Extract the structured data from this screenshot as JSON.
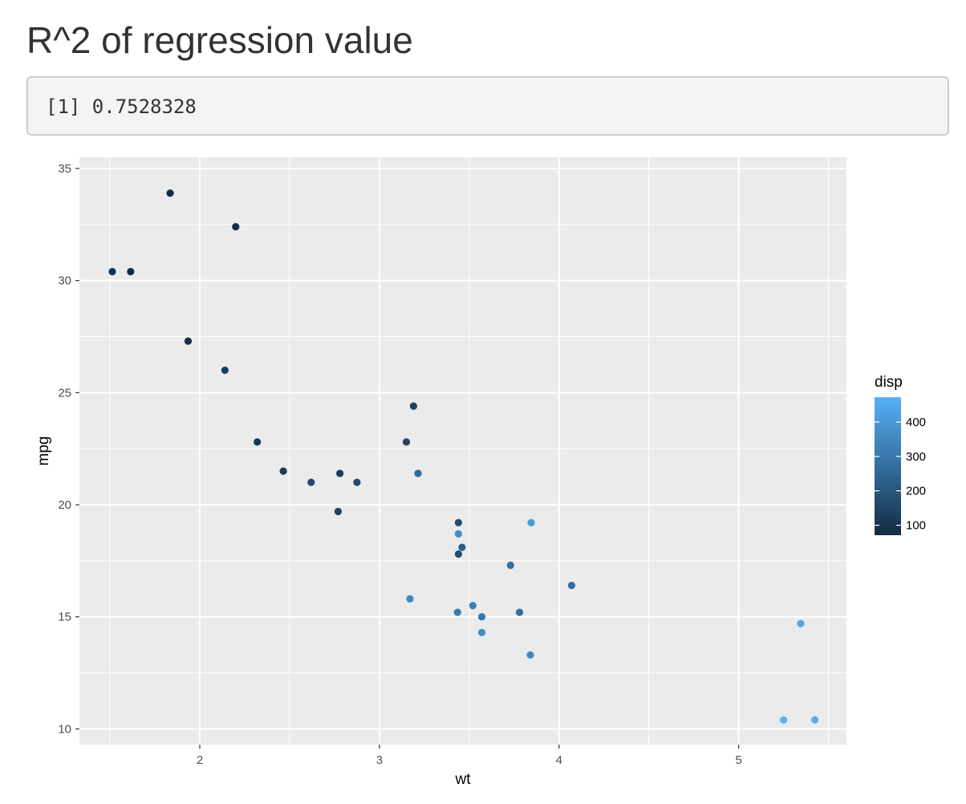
{
  "page": {
    "title": "R^2 of regression value",
    "output_text": "[1] 0.7528328"
  },
  "chart_data": {
    "type": "scatter",
    "title": "",
    "xlabel": "wt",
    "ylabel": "mpg",
    "xlim": [
      1.33,
      5.6
    ],
    "ylim": [
      9.3,
      35.5
    ],
    "x_ticks": [
      2,
      3,
      4,
      5
    ],
    "y_ticks": [
      10,
      15,
      20,
      25,
      30,
      35
    ],
    "grid": true,
    "panel_background": "#ebebeb",
    "grid_color": "#ffffff",
    "color_variable": "disp",
    "color_scale": {
      "low_color": "#132b43",
      "high_color": "#56b1f7",
      "min": 71.1,
      "max": 472,
      "breaks": [
        100,
        200,
        300,
        400
      ]
    },
    "legend_position": "right",
    "points": [
      {
        "x": 2.62,
        "y": 21.0,
        "color": 160
      },
      {
        "x": 2.875,
        "y": 21.0,
        "color": 160
      },
      {
        "x": 2.32,
        "y": 22.8,
        "color": 108
      },
      {
        "x": 3.215,
        "y": 21.4,
        "color": 258
      },
      {
        "x": 3.44,
        "y": 18.7,
        "color": 360
      },
      {
        "x": 3.46,
        "y": 18.1,
        "color": 225
      },
      {
        "x": 3.57,
        "y": 14.3,
        "color": 360
      },
      {
        "x": 3.19,
        "y": 24.4,
        "color": 146.7
      },
      {
        "x": 3.15,
        "y": 22.8,
        "color": 140.8
      },
      {
        "x": 3.44,
        "y": 19.2,
        "color": 167.6
      },
      {
        "x": 3.44,
        "y": 17.8,
        "color": 167.6
      },
      {
        "x": 4.07,
        "y": 16.4,
        "color": 275.8
      },
      {
        "x": 3.73,
        "y": 17.3,
        "color": 275.8
      },
      {
        "x": 3.78,
        "y": 15.2,
        "color": 275.8
      },
      {
        "x": 5.25,
        "y": 10.4,
        "color": 472
      },
      {
        "x": 5.424,
        "y": 10.4,
        "color": 460
      },
      {
        "x": 5.345,
        "y": 14.7,
        "color": 440
      },
      {
        "x": 2.2,
        "y": 32.4,
        "color": 78.7
      },
      {
        "x": 1.615,
        "y": 30.4,
        "color": 75.7
      },
      {
        "x": 1.835,
        "y": 33.9,
        "color": 71.1
      },
      {
        "x": 2.465,
        "y": 21.5,
        "color": 120.1
      },
      {
        "x": 3.52,
        "y": 15.5,
        "color": 318
      },
      {
        "x": 3.435,
        "y": 15.2,
        "color": 304
      },
      {
        "x": 3.84,
        "y": 13.3,
        "color": 350
      },
      {
        "x": 3.845,
        "y": 19.2,
        "color": 400
      },
      {
        "x": 1.935,
        "y": 27.3,
        "color": 79
      },
      {
        "x": 2.14,
        "y": 26.0,
        "color": 120.3
      },
      {
        "x": 1.513,
        "y": 30.4,
        "color": 95.1
      },
      {
        "x": 3.17,
        "y": 15.8,
        "color": 351
      },
      {
        "x": 2.77,
        "y": 19.7,
        "color": 145
      },
      {
        "x": 3.57,
        "y": 15.0,
        "color": 301
      },
      {
        "x": 2.78,
        "y": 21.4,
        "color": 121
      }
    ]
  }
}
